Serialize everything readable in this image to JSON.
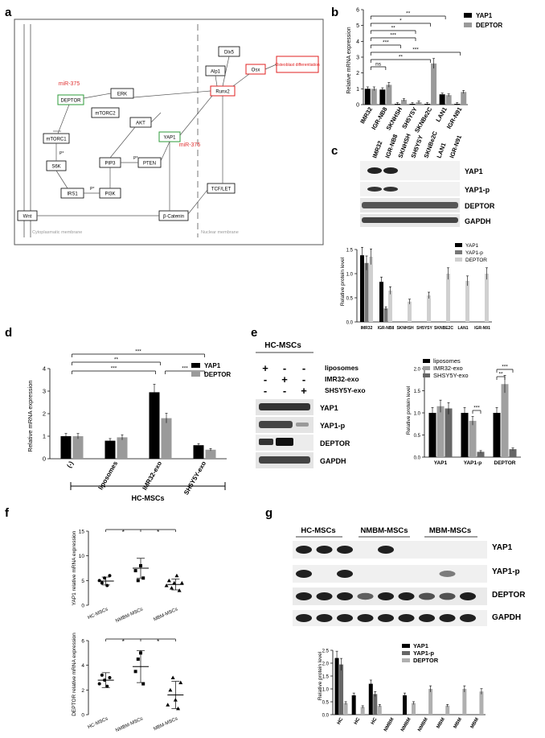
{
  "panels": {
    "a": "a",
    "b": "b",
    "c": "c",
    "d": "d",
    "e": "e",
    "f": "f",
    "g": "g"
  },
  "pathway": {
    "nodes": [
      "ERK",
      "DEPTOR",
      "mTORC2",
      "mTORC1",
      "S6K",
      "IRS1",
      "PI3K",
      "PIP3",
      "AKT",
      "PTEN",
      "YAP1",
      "Wnt",
      "β-Catenin",
      "TCF/LET",
      "Runx2",
      "Dlx5",
      "Alp1",
      "Osx",
      "Osteoblast differentiation"
    ],
    "mirna": [
      "miR-375",
      "miR-375"
    ],
    "phospho": [
      "P*",
      "P*",
      "P*"
    ],
    "membranes": {
      "cyto": "Cytoplasmatic membrane",
      "nuclear": "Nuclear membrane"
    }
  },
  "panel_b": {
    "ylabel": "Relative mRNA expression",
    "yticks": [
      "0",
      "1",
      "2",
      "3",
      "4",
      "5",
      "6"
    ],
    "categories": [
      "IMR32",
      "IGR-NB8",
      "SKNHSH",
      "SH5YSY",
      "SKNBe2C",
      "LAN1",
      "IGR-N91"
    ],
    "series": [
      {
        "name": "YAP1",
        "values": [
          1.0,
          0.95,
          0.05,
          0.05,
          0.05,
          0.65,
          0.05
        ]
      },
      {
        "name": "DEPTOR",
        "values": [
          1.0,
          1.25,
          0.3,
          0.15,
          2.6,
          0.6,
          0.8
        ]
      }
    ],
    "sig": [
      "**",
      "*",
      "**",
      "***",
      "***",
      "***",
      "**",
      "ns"
    ]
  },
  "panel_c": {
    "lanes": [
      "IMR32",
      "IGR-NB8",
      "SKNHSH",
      "SH5YSY",
      "SKNBe2C",
      "LAN1",
      "IGR-N91"
    ],
    "blots": [
      "YAP1",
      "YAP1-p",
      "DEPTOR",
      "GAPDH"
    ],
    "ylabel": "Relative protein level",
    "yticks": [
      "0.0",
      "0.5",
      "1.0",
      "1.5"
    ],
    "categories": [
      "IMR32",
      "IGR-NB8",
      "SKNHSH",
      "SH5YSY",
      "SKNBE2C",
      "LAN1",
      "IGR-N91"
    ],
    "series": [
      {
        "name": "YAP1",
        "values": [
          1.38,
          0.83,
          0,
          0,
          0,
          0,
          0
        ]
      },
      {
        "name": "YAP1-p",
        "values": [
          1.22,
          0.28,
          0,
          0,
          0,
          0,
          0
        ]
      },
      {
        "name": "DEPTOR",
        "values": [
          1.35,
          0.65,
          0.42,
          0.55,
          1.0,
          0.85,
          1.0
        ]
      }
    ]
  },
  "panel_d": {
    "ylabel": "Relative mRNA expression",
    "yticks": [
      "0",
      "1",
      "2",
      "3",
      "4"
    ],
    "categories": [
      "(-)",
      "liposomes",
      "IMR32-exo",
      "SH5Y5Y-exo"
    ],
    "series": [
      {
        "name": "YAP1",
        "values": [
          1.0,
          0.8,
          2.95,
          0.6
        ]
      },
      {
        "name": "DEPTOR",
        "values": [
          1.0,
          0.95,
          1.8,
          0.4
        ]
      }
    ],
    "sig": [
      "***",
      "**",
      "***",
      "***"
    ],
    "group": "HC-MSCs"
  },
  "panel_e": {
    "title": "HC-MSCs",
    "treatments": [
      "liposomes",
      "IMR32-exo",
      "SHSY5Y-exo"
    ],
    "signs": [
      [
        "+",
        "-",
        "-"
      ],
      [
        "-",
        "+",
        "-"
      ],
      [
        "-",
        "-",
        "+"
      ]
    ],
    "blots": [
      "YAP1",
      "YAP1-p",
      "DEPTOR",
      "GAPDH"
    ],
    "ylabel": "Relative protein level",
    "yticks": [
      "0.0",
      "0.5",
      "1.0",
      "1.5",
      "2.0"
    ],
    "categories": [
      "YAP1",
      "YAP1-p",
      "DEPTOR"
    ],
    "series": [
      {
        "name": "liposomes",
        "values": [
          1.0,
          1.0,
          1.0
        ]
      },
      {
        "name": "IMR32-exo",
        "values": [
          1.15,
          0.82,
          1.65
        ]
      },
      {
        "name": "SHSY5Y-exo",
        "values": [
          1.1,
          0.12,
          0.18
        ]
      }
    ],
    "sig": [
      "***",
      "**",
      "***"
    ]
  },
  "panel_f": {
    "top": {
      "ylabel": "YAP1 relative mRNA expression",
      "yticks": [
        "0",
        "5",
        "10",
        "15"
      ],
      "categories": [
        "HC-MSCs",
        "NMBM-MSCs",
        "MBM-MSCs"
      ],
      "sig": [
        "*",
        "*"
      ]
    },
    "bottom": {
      "ylabel": "DEPTOR relative mRNA expression",
      "yticks": [
        "0",
        "2",
        "4",
        "6"
      ],
      "categories": [
        "HC-MSCs",
        "NMBM-MSCs",
        "MBM-MSCs"
      ],
      "sig": [
        "*",
        "*"
      ]
    }
  },
  "panel_g": {
    "groups": [
      "HC-MSCs",
      "NMBM-MSCs",
      "MBM-MSCs"
    ],
    "blots": [
      "YAP1",
      "YAP1-p",
      "DEPTOR",
      "GAPDH"
    ],
    "ylabel": "Relative protein level",
    "yticks": [
      "0.0",
      "0.5",
      "1.0",
      "1.5",
      "2.0",
      "2.5"
    ],
    "categories": [
      "HC",
      "HC",
      "HC",
      "NMBM",
      "NMBM",
      "NMBM",
      "MBM",
      "MBM",
      "MBM"
    ],
    "series": [
      {
        "name": "YAP1",
        "values": [
          2.2,
          0.75,
          1.2,
          0,
          0.75,
          0,
          0,
          0,
          0
        ]
      },
      {
        "name": "YAP1-p",
        "values": [
          1.95,
          0,
          0.8,
          0,
          0,
          0,
          0,
          0,
          0
        ]
      },
      {
        "name": "DEPTOR",
        "values": [
          0.45,
          0.3,
          0.35,
          0,
          0.45,
          1.0,
          0.35,
          1.0,
          0.9
        ]
      }
    ]
  },
  "colors": {
    "black": "#000000",
    "grey": "#9a9a9a",
    "light": "#d0d0d0",
    "mirna": "#e03030",
    "green": "#2e9b3a",
    "red": "#e02020"
  }
}
